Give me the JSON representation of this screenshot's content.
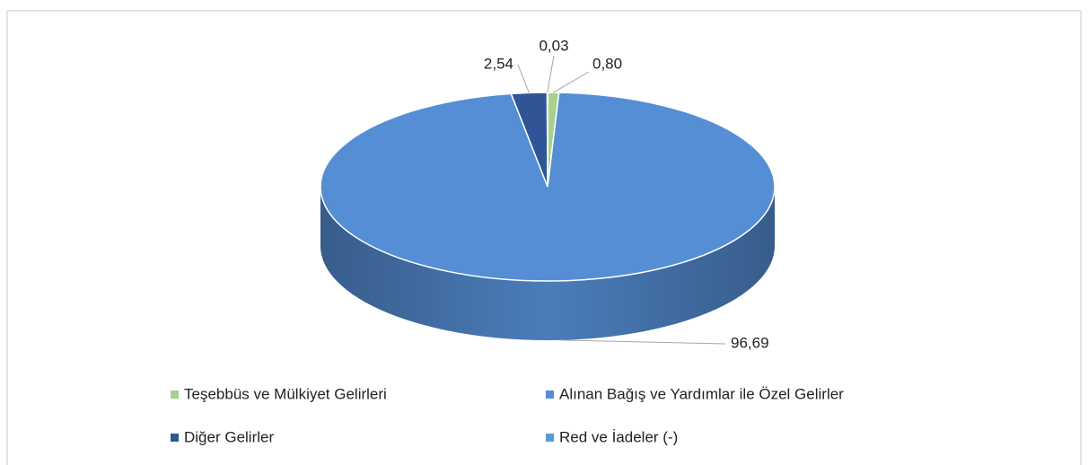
{
  "chart_data": {
    "type": "pie3d",
    "categories": [
      "Teşebbüs ve Mülkiyet Gelirleri",
      "Alınan Bağış ve Yardımlar ile Özel Gelirler",
      "Diğer Gelirler",
      "Red ve İadeler (-)"
    ],
    "values": [
      0.8,
      96.69,
      2.54,
      0.03
    ],
    "value_labels": [
      "0,80",
      "96,69",
      "2,54",
      "0,03"
    ],
    "colors": [
      "#a9d18e",
      "#558ed5",
      "#2f5597",
      "#5b9bd5"
    ],
    "legend": "bottom"
  }
}
